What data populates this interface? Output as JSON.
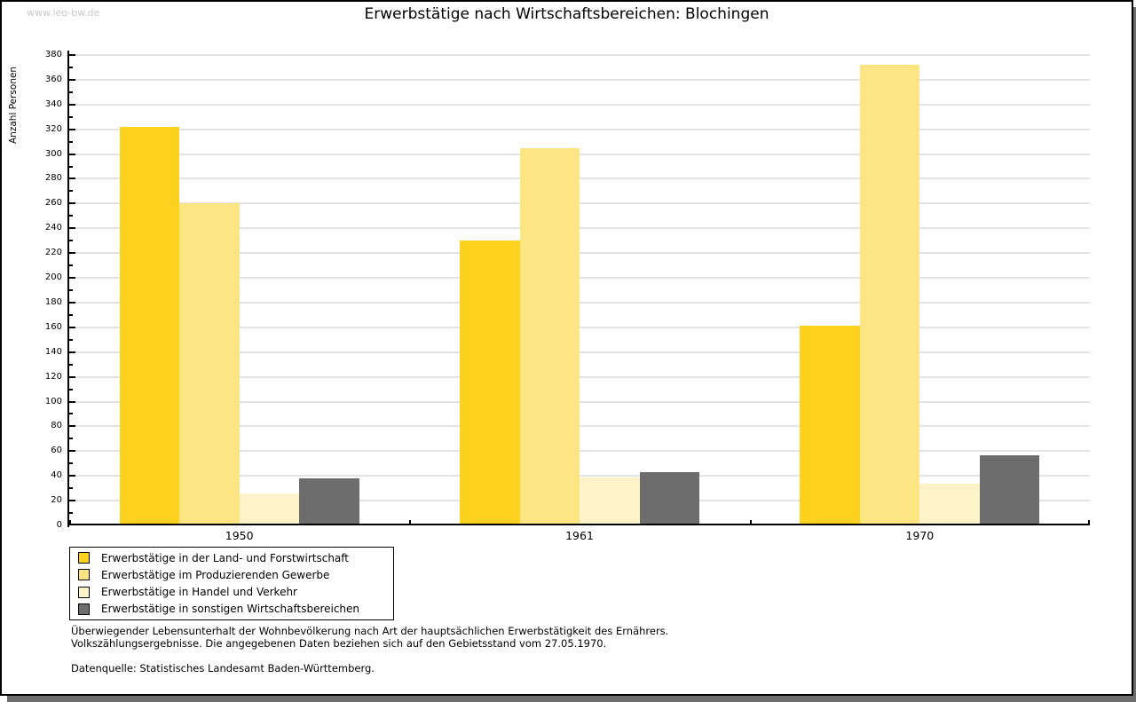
{
  "watermark": "www.leo-bw.de",
  "chart_data": {
    "type": "bar",
    "title": "Erwerbstätige nach Wirtschaftsbereichen: Blochingen",
    "xlabel": "",
    "ylabel": "Anzahl Personen",
    "categories": [
      "1950",
      "1961",
      "1970"
    ],
    "series": [
      {
        "name": "Erwerbstätige in der Land- und Forstwirtschaft",
        "color": "#fcd21f",
        "values": [
          322,
          230,
          161
        ]
      },
      {
        "name": "Erwerbstätige im Produzierenden Gewerbe",
        "color": "#fce582",
        "values": [
          260,
          305,
          372
        ]
      },
      {
        "name": "Erwerbstätige in Handel und Verkehr",
        "color": "#fdf3c8",
        "values": [
          26,
          39,
          34
        ]
      },
      {
        "name": "Erwerbstätige in sonstigen Wirtschaftsbereichen",
        "color": "#6d6d6d",
        "values": [
          38,
          43,
          57
        ]
      }
    ],
    "ylim": [
      0,
      380
    ],
    "y_tick_step": 20,
    "y_minor_tick_step": 10,
    "grid": true,
    "gridline_color": "#e2e2e2",
    "legend_position": "bottom-left"
  },
  "footer": {
    "line1": "Überwiegender Lebensunterhalt der Wohnbevölkerung nach Art der hauptsächlichen Erwerbstätigkeit des Ernährers.",
    "line2": "Volkszählungsergebnisse. Die angegebenen Daten beziehen sich auf den Gebietsstand vom 27.05.1970.",
    "source": "Datenquelle: Statistisches Landesamt Baden-Württemberg."
  }
}
